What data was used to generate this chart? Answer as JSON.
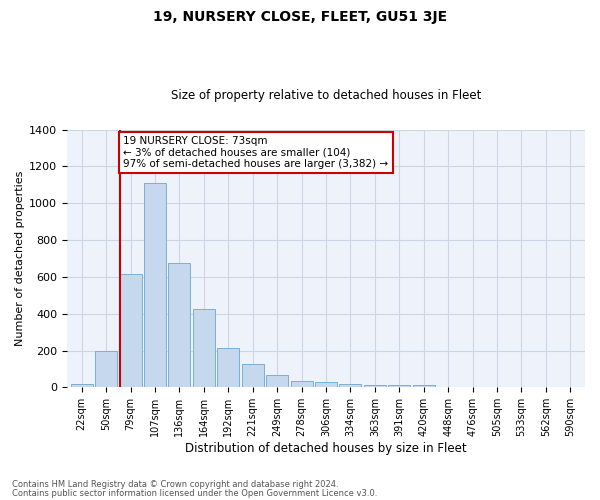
{
  "title": "19, NURSERY CLOSE, FLEET, GU51 3JE",
  "subtitle": "Size of property relative to detached houses in Fleet",
  "xlabel": "Distribution of detached houses by size in Fleet",
  "ylabel": "Number of detached properties",
  "footnote1": "Contains HM Land Registry data © Crown copyright and database right 2024.",
  "footnote2": "Contains public sector information licensed under the Open Government Licence v3.0.",
  "bar_labels": [
    "22sqm",
    "50sqm",
    "79sqm",
    "107sqm",
    "136sqm",
    "164sqm",
    "192sqm",
    "221sqm",
    "249sqm",
    "278sqm",
    "306sqm",
    "334sqm",
    "363sqm",
    "391sqm",
    "420sqm",
    "448sqm",
    "476sqm",
    "505sqm",
    "533sqm",
    "562sqm",
    "590sqm"
  ],
  "bar_values": [
    20,
    195,
    615,
    1110,
    675,
    425,
    215,
    125,
    68,
    32,
    28,
    20,
    15,
    12,
    15,
    0,
    0,
    0,
    0,
    0,
    0
  ],
  "bar_color": "#c5d8ed",
  "bar_edge_color": "#7aafd4",
  "grid_color": "#ccd6e8",
  "background_color": "#eef2fa",
  "vline_color": "#cc0000",
  "annotation_text": "19 NURSERY CLOSE: 73sqm\n← 3% of detached houses are smaller (104)\n97% of semi-detached houses are larger (3,382) →",
  "annotation_box_color": "#ffffff",
  "annotation_box_edge": "#cc0000",
  "ylim": [
    0,
    1400
  ],
  "yticks": [
    0,
    200,
    400,
    600,
    800,
    1000,
    1200,
    1400
  ]
}
